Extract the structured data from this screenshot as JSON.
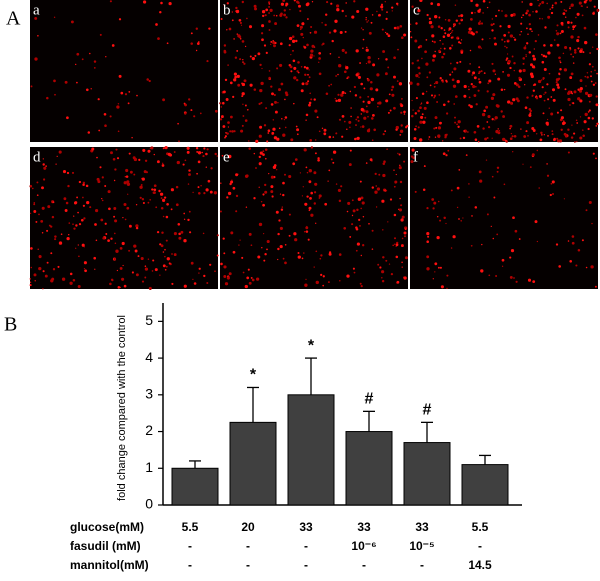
{
  "figure": {
    "panel_a_label": "A",
    "panel_b_label": "B",
    "micrographs": [
      "a",
      "b",
      "c",
      "d",
      "e",
      "f"
    ]
  },
  "chart_data": {
    "type": "bar",
    "y_label": "fold change compared with the control",
    "values": [
      1,
      2.25,
      3,
      2,
      1.7,
      1.1
    ],
    "errors": [
      0.2,
      0.95,
      1.0,
      0.55,
      0.55,
      0.25
    ],
    "significance": [
      null,
      "*",
      "*",
      "#",
      "#",
      null
    ],
    "color": "#404040",
    "ylim": [
      0,
      5.5
    ],
    "yticks": [
      0,
      1,
      2,
      3,
      4,
      5
    ],
    "condition_table": [
      {
        "label": "glucose(mM)",
        "cells": [
          "5.5",
          "20",
          "33",
          "33",
          "33",
          "5.5"
        ]
      },
      {
        "label": "fasudil (mM)",
        "cells": [
          "-",
          "-",
          "-",
          "10⁻⁶",
          "10⁻⁵",
          "-"
        ]
      },
      {
        "label": "mannitol(mM)",
        "cells": [
          "-",
          "-",
          "-",
          "-",
          "-",
          "14.5"
        ]
      }
    ]
  }
}
